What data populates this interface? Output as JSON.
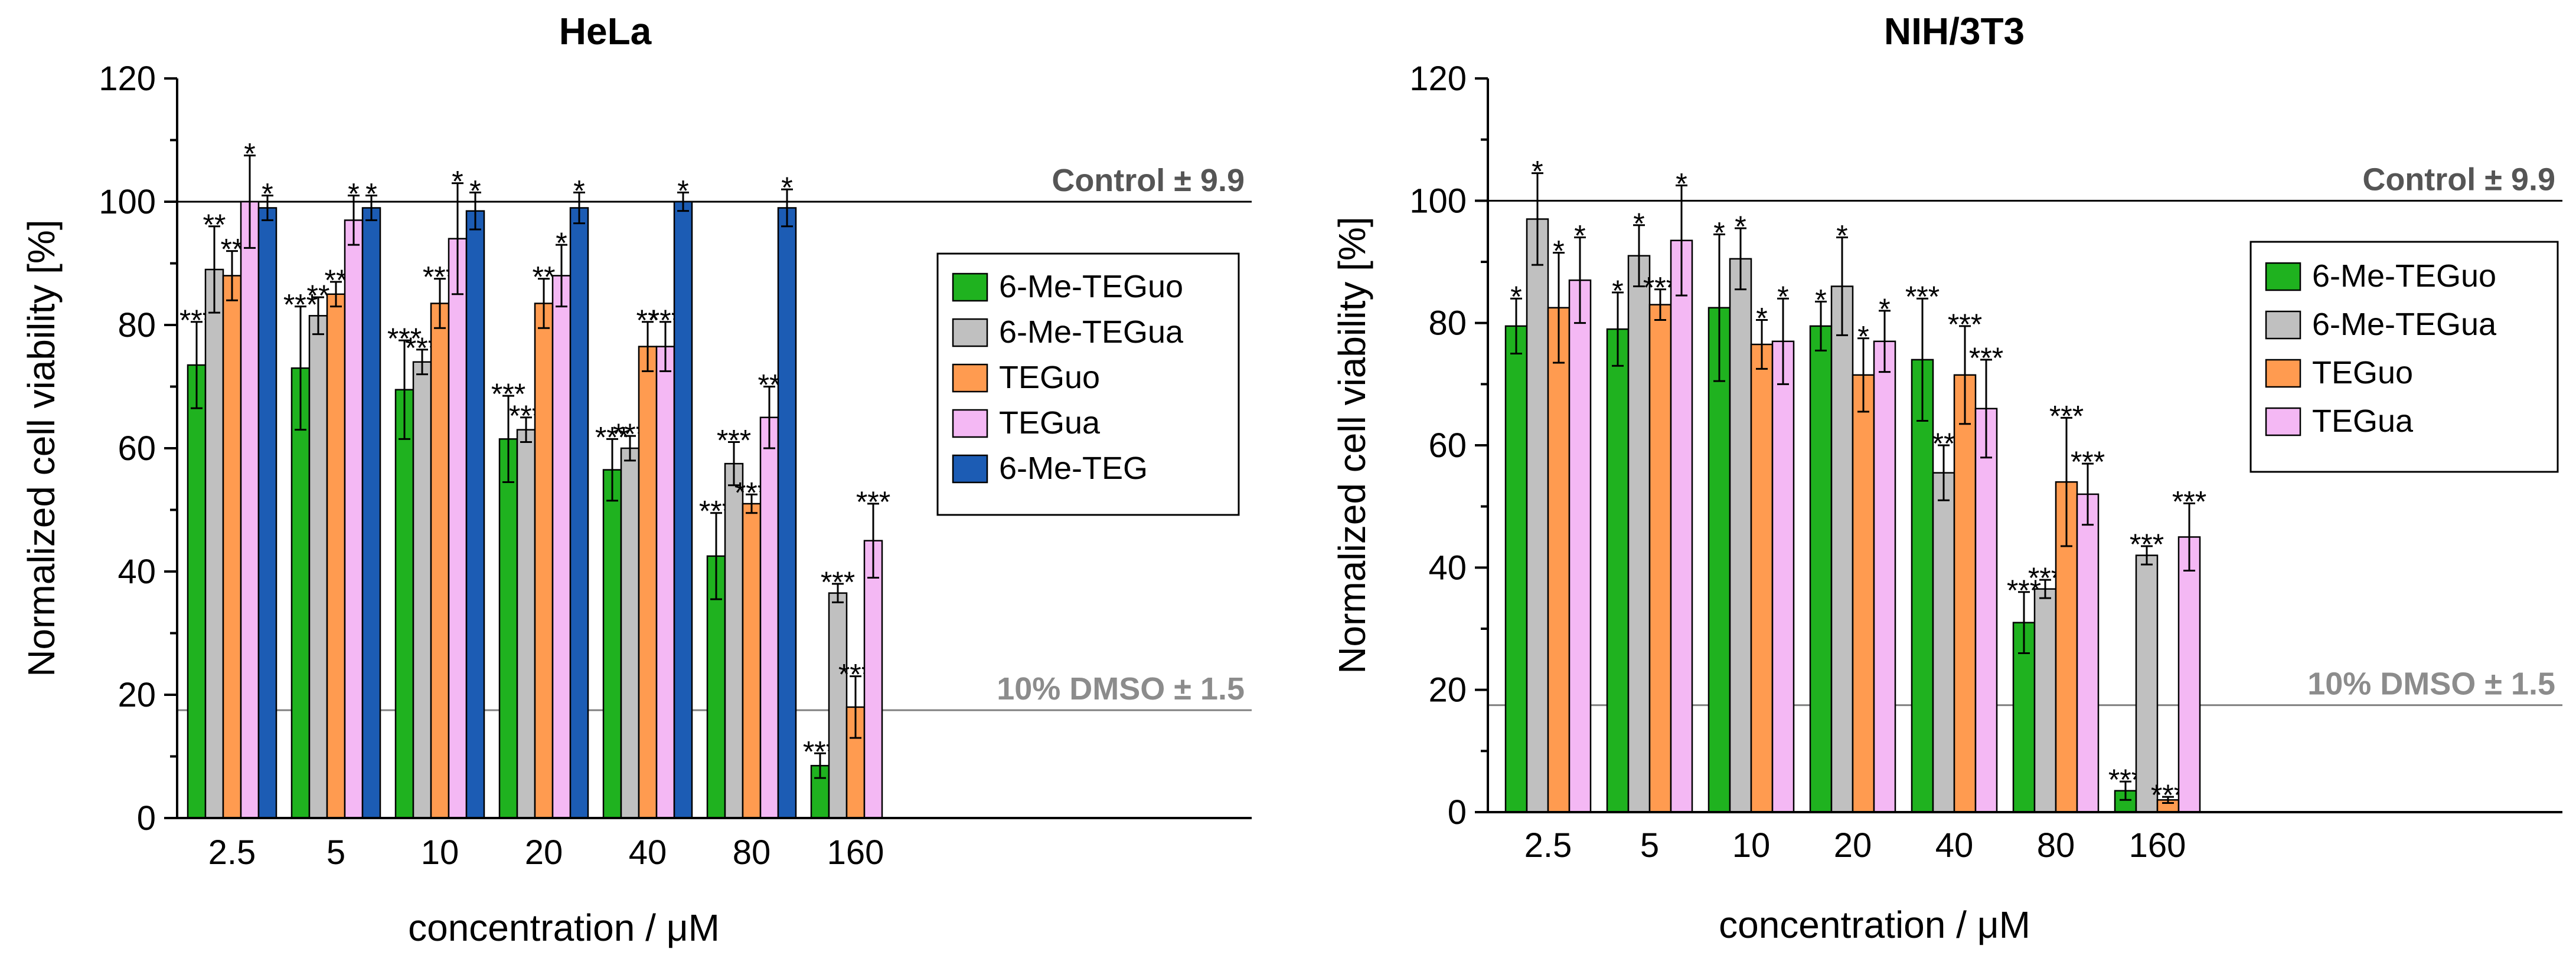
{
  "chart_data": [
    {
      "type": "bar",
      "title": "HeLa",
      "xlabel": "concentration / μM",
      "ylabel": "Normalized cell viability [%]",
      "ylim": [
        0,
        120
      ],
      "yticks": [
        0,
        20,
        40,
        60,
        80,
        100,
        120
      ],
      "categories": [
        "2.5",
        "5",
        "10",
        "20",
        "40",
        "80",
        "160"
      ],
      "reference_lines": [
        {
          "value": 100,
          "label": "Control ± 9.9",
          "color": "#000000",
          "text_color": "#555555"
        },
        {
          "value": 17.5,
          "label": "10% DMSO ± 1.5",
          "color": "#808080",
          "text_color": "#8c8c8c"
        }
      ],
      "legend_position": "right-middle",
      "series": [
        {
          "name": "6-Me-TEGuo",
          "color": "#1fb21f",
          "values": [
            73.5,
            73,
            69.5,
            61.5,
            56.5,
            42.5,
            8.5
          ],
          "errors": [
            7,
            10,
            8,
            7,
            5,
            7,
            2
          ],
          "significance": [
            "***",
            "***",
            "***",
            "***",
            "***",
            "***",
            "***"
          ]
        },
        {
          "name": "6-Me-TEGua",
          "color": "#c0c0c0",
          "values": [
            89,
            81.5,
            74,
            63,
            60,
            57.5,
            36.5
          ],
          "errors": [
            7,
            3,
            2,
            2,
            2,
            3.5,
            1.5
          ],
          "significance": [
            "**",
            "**",
            "***",
            "***",
            "***",
            "***",
            "***"
          ]
        },
        {
          "name": "TEGuo",
          "color": "#ff9b50",
          "values": [
            88,
            85,
            83.5,
            83.5,
            76.5,
            51,
            18
          ],
          "errors": [
            4,
            2,
            4,
            4,
            4,
            1.5,
            5
          ],
          "significance": [
            "**",
            "**",
            "***",
            "**",
            "**",
            "***",
            "***"
          ]
        },
        {
          "name": "TEGua",
          "color": "#f4b8f4",
          "values": [
            100,
            97,
            94,
            88,
            76.5,
            65,
            45
          ],
          "errors": [
            7.5,
            4,
            9,
            5,
            4,
            5,
            6
          ],
          "significance": [
            "*",
            "*",
            "*",
            "*",
            "***",
            "**",
            "***"
          ]
        },
        {
          "name": "6-Me-TEG",
          "color": "#1c5cb4",
          "values": [
            99,
            99,
            98.5,
            99,
            100,
            99,
            null
          ],
          "errors": [
            2,
            2,
            3,
            2.5,
            1.5,
            3,
            null
          ],
          "significance": [
            "*",
            "*",
            "*",
            "*",
            "*",
            "*",
            ""
          ]
        }
      ]
    },
    {
      "type": "bar",
      "title": "NIH/3T3",
      "xlabel": "concentration / μM",
      "ylabel": "Normalized cell viability [%]",
      "ylim": [
        0,
        120
      ],
      "yticks": [
        0,
        20,
        40,
        60,
        80,
        100,
        120
      ],
      "categories": [
        "2.5",
        "5",
        "10",
        "20",
        "40",
        "80",
        "160"
      ],
      "reference_lines": [
        {
          "value": 100,
          "label": "Control ± 9.9",
          "color": "#000000",
          "text_color": "#555555"
        },
        {
          "value": 17.5,
          "label": "10% DMSO ± 1.5",
          "color": "#808080",
          "text_color": "#8c8c8c"
        }
      ],
      "legend_position": "right-upper",
      "series": [
        {
          "name": "6-Me-TEGuo",
          "color": "#1fb21f",
          "values": [
            79.5,
            79,
            82.5,
            79.5,
            74,
            31,
            3.5
          ],
          "errors": [
            4.5,
            6,
            12,
            4,
            10,
            5,
            1.5
          ],
          "significance": [
            "*",
            "*",
            "*",
            "*",
            "***",
            "***",
            "***"
          ]
        },
        {
          "name": "6-Me-TEGua",
          "color": "#c0c0c0",
          "values": [
            97,
            91,
            90.5,
            86,
            55.5,
            36.5,
            42
          ],
          "errors": [
            7.5,
            5,
            5,
            8,
            4.5,
            1.5,
            1.5
          ],
          "significance": [
            "*",
            "*",
            "*",
            "*",
            "**",
            "***",
            "***"
          ]
        },
        {
          "name": "TEGuo",
          "color": "#ff9b50",
          "values": [
            82.5,
            83,
            76.5,
            71.5,
            71.5,
            54,
            2
          ],
          "errors": [
            9,
            2.5,
            4,
            6,
            8,
            10.5,
            0.5
          ],
          "significance": [
            "*",
            "***",
            "*",
            "*",
            "***",
            "***",
            "***"
          ]
        },
        {
          "name": "TEGua",
          "color": "#f4b8f4",
          "values": [
            87,
            93.5,
            77,
            77,
            66,
            52,
            45
          ],
          "errors": [
            7,
            9,
            7,
            5,
            8,
            5,
            5.5
          ],
          "significance": [
            "*",
            "*",
            "*",
            "*",
            "***",
            "***",
            "***"
          ]
        }
      ]
    }
  ]
}
